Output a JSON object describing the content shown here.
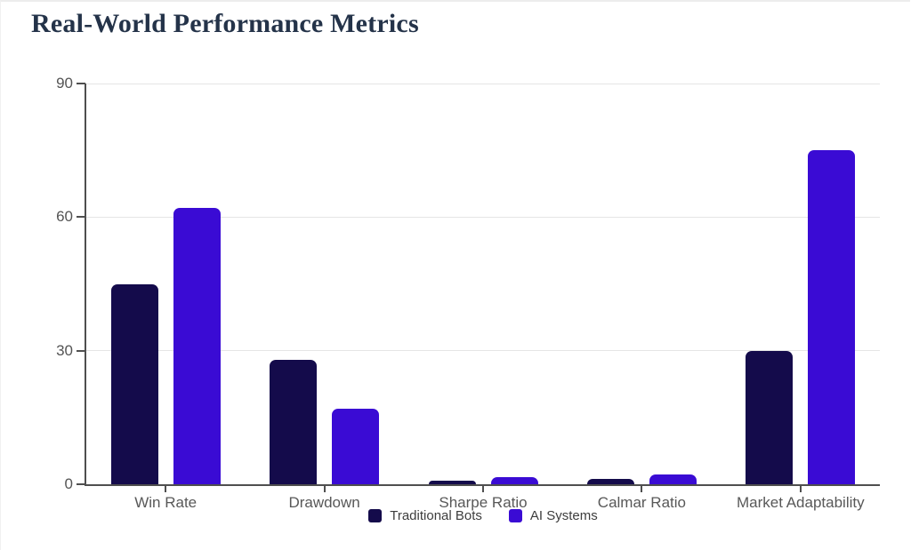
{
  "title": "Real-World Performance Metrics",
  "title_color": "#243349",
  "chart_data": {
    "type": "bar",
    "title": "Real-World Performance Metrics",
    "categories": [
      "Win Rate",
      "Drawdown",
      "Sharpe Ratio",
      "Calmar Ratio",
      "Market Adaptability"
    ],
    "series": [
      {
        "name": "Traditional Bots",
        "color": "#140b4b",
        "values": [
          45,
          28,
          0.8,
          1.2,
          30
        ]
      },
      {
        "name": "AI Systems",
        "color": "#3a0bd4",
        "values": [
          62,
          17,
          1.6,
          2.2,
          75
        ]
      }
    ],
    "ylim": [
      0,
      90
    ],
    "yticks": [
      0,
      30,
      60,
      90
    ],
    "grid": true,
    "legend_position": "bottom",
    "axis_color": "#4f4f4f",
    "grid_color": "#e5e5e5",
    "tick_label_color": "#545454",
    "legend_text_color": "#3d3d3d",
    "background_color": "#ffffff"
  }
}
